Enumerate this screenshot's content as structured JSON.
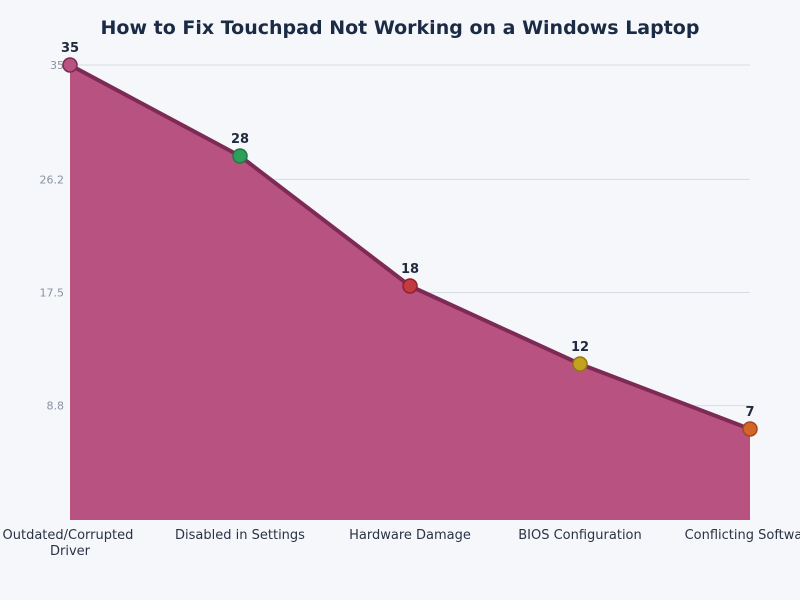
{
  "chart_data": {
    "type": "area",
    "title": "How to Fix Touchpad Not Working on a Windows Laptop",
    "xlabel": "",
    "ylabel": "",
    "categories": [
      "Outdated/Corrupted Driver",
      "Disabled in Settings",
      "Hardware Damage",
      "BIOS Configuration",
      "Conflicting Software"
    ],
    "values": [
      35,
      28,
      18,
      12,
      7
    ],
    "data_labels": [
      "35",
      "28",
      "18",
      "12",
      "7"
    ],
    "ylim": [
      0,
      35
    ],
    "yticks": [
      8.8,
      17.5,
      26.2,
      35
    ],
    "ytick_labels": [
      "8.8",
      "17.5",
      "26.2",
      "35"
    ],
    "grid": true,
    "colors": {
      "fill": "#b85280",
      "line": "#7d2a55",
      "markers": [
        "#b85280",
        "#2e9e5b",
        "#c23b40",
        "#c4a21f",
        "#d2652a"
      ],
      "marker_strokes": [
        "#7d2a55",
        "#1f7a43",
        "#8e2228",
        "#93780f",
        "#a44818"
      ]
    }
  }
}
